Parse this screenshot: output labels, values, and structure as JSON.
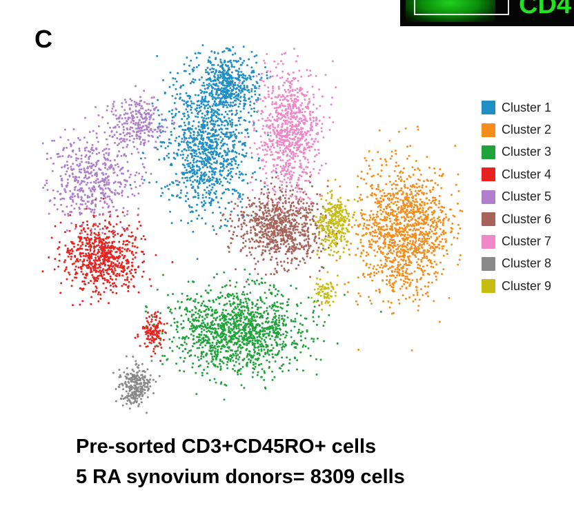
{
  "panel_label": "C",
  "inset": {
    "text": "CD4"
  },
  "chart_data": {
    "type": "scatter",
    "title": "",
    "xlabel": "",
    "ylabel": "",
    "grid": false,
    "axes_visible": false,
    "legend_position": "right",
    "point_radius": 1.5,
    "series": [
      {
        "name": "Cluster 1",
        "color": "#1f8fc6",
        "n": 1500,
        "blobs": [
          [
            300,
            210,
            58,
            92,
            0.7
          ],
          [
            330,
            120,
            38,
            38,
            0.3
          ]
        ]
      },
      {
        "name": "Cluster 2",
        "color": "#f58d1b",
        "n": 1250,
        "blobs": [
          [
            585,
            335,
            60,
            88,
            1.0
          ]
        ]
      },
      {
        "name": "Cluster 3",
        "color": "#1fa33a",
        "n": 1300,
        "blobs": [
          [
            345,
            480,
            88,
            55,
            1.0
          ]
        ]
      },
      {
        "name": "Cluster 4",
        "color": "#e8231f",
        "n": 800,
        "blobs": [
          [
            148,
            372,
            52,
            45,
            0.85
          ],
          [
            222,
            480,
            16,
            24,
            0.15
          ]
        ]
      },
      {
        "name": "Cluster 5",
        "color": "#b07fcc",
        "n": 750,
        "blobs": [
          [
            135,
            260,
            62,
            55,
            0.65
          ],
          [
            195,
            180,
            40,
            35,
            0.35
          ]
        ]
      },
      {
        "name": "Cluster 6",
        "color": "#a8645a",
        "n": 800,
        "blobs": [
          [
            405,
            330,
            55,
            48,
            1.0
          ]
        ]
      },
      {
        "name": "Cluster 7",
        "color": "#f087c8",
        "n": 800,
        "blobs": [
          [
            420,
            190,
            40,
            85,
            1.0
          ]
        ]
      },
      {
        "name": "Cluster 8",
        "color": "#8a8a8a",
        "n": 250,
        "blobs": [
          [
            195,
            560,
            20,
            26,
            1.0
          ]
        ]
      },
      {
        "name": "Cluster 9",
        "color": "#c6bd10",
        "n": 350,
        "blobs": [
          [
            485,
            325,
            22,
            38,
            0.8
          ],
          [
            470,
            425,
            14,
            18,
            0.2
          ]
        ]
      }
    ]
  },
  "caption": {
    "line1": "Pre-sorted CD3+CD45RO+ cells",
    "line2": "5 RA synovium donors= 8309 cells"
  }
}
